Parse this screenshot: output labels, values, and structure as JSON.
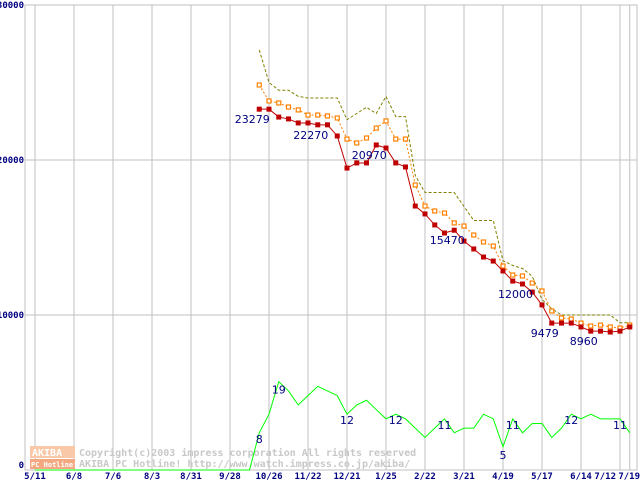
{
  "chart_data": {
    "type": "line",
    "title": "",
    "xlabel": "",
    "ylabel": "",
    "ylim": [
      0,
      30000
    ],
    "secondary_ylim": [
      0,
      100
    ],
    "grid": true,
    "y_ticks": [
      "0",
      "10000",
      "20000",
      "30000"
    ],
    "y_tick_values": [
      0,
      10000,
      20000,
      30000
    ],
    "x_ticks": [
      {
        "week": 0,
        "label": "5/11"
      },
      {
        "week": 4,
        "label": "6/8"
      },
      {
        "week": 8,
        "label": "7/6"
      },
      {
        "week": 12,
        "label": "8/3"
      },
      {
        "week": 16,
        "label": "8/31"
      },
      {
        "week": 20,
        "label": "9/28"
      },
      {
        "week": 24,
        "label": "10/26"
      },
      {
        "week": 28,
        "label": "11/22"
      },
      {
        "week": 32,
        "label": "12/21"
      },
      {
        "week": 36,
        "label": "1/25"
      },
      {
        "week": 40,
        "label": "2/22"
      },
      {
        "week": 44,
        "label": "3/21"
      },
      {
        "week": 48,
        "label": "4/19"
      },
      {
        "week": 52,
        "label": "5/17"
      },
      {
        "week": 56,
        "label": "6/14"
      },
      {
        "week": 60,
        "label": "7/12"
      },
      {
        "week": 61,
        "label": "7/19"
      }
    ],
    "series": [
      {
        "name": "max-price",
        "color": "#808000",
        "style": "dashed",
        "axis": "price",
        "start_week": 23,
        "values": [
          27100,
          25000,
          24500,
          24500,
          24100,
          24000,
          24000,
          24000,
          24000,
          22600,
          23000,
          23400,
          23000,
          24100,
          22800,
          22800,
          19000,
          17900,
          17900,
          17900,
          17900,
          17000,
          16100,
          16100,
          16100,
          13500,
          13200,
          13000,
          12500,
          11000,
          10400,
          10000,
          10000,
          10000,
          10000,
          10000,
          10000,
          9500,
          9500
        ]
      },
      {
        "name": "average-price",
        "color": "#ff8000",
        "style": "dotted-hollow-squares",
        "axis": "price",
        "start_week": 23,
        "values": [
          24840,
          23810,
          23680,
          23420,
          23230,
          22900,
          22900,
          22840,
          22710,
          21350,
          21100,
          21420,
          22060,
          22520,
          21350,
          21350,
          18390,
          17030,
          16710,
          16580,
          15940,
          15740,
          15160,
          14710,
          14450,
          13160,
          12580,
          12520,
          12060,
          11550,
          10260,
          9810,
          9740,
          9480,
          9290,
          9350,
          9230,
          9160,
          9350
        ]
      },
      {
        "name": "min-price",
        "color": "#c00000",
        "style": "solid-filled-squares",
        "axis": "price",
        "start_week": 23,
        "values": [
          23279,
          23279,
          22770,
          22650,
          22390,
          22390,
          22270,
          22270,
          21550,
          19480,
          19810,
          19810,
          20970,
          20770,
          19810,
          19550,
          17030,
          16520,
          15810,
          15290,
          15470,
          14770,
          14260,
          13740,
          13480,
          12840,
          12190,
          12000,
          11480,
          10650,
          9479,
          9479,
          9479,
          9230,
          8960,
          8960,
          8900,
          8960,
          9230
        ]
      },
      {
        "name": "shop-count",
        "color": "#00ff00",
        "style": "solid",
        "axis": "count",
        "start_week": 0,
        "values": [
          0,
          0,
          0,
          0,
          0,
          0,
          0,
          0,
          0,
          0,
          0,
          0,
          0,
          0,
          0,
          0,
          0,
          0,
          0,
          0,
          0,
          0,
          0,
          8,
          12,
          19,
          17,
          14,
          16,
          18,
          17,
          16,
          12,
          14,
          15,
          13,
          11,
          12,
          11,
          9,
          7,
          9,
          11,
          8,
          9,
          9,
          12,
          11,
          5,
          11,
          8,
          10,
          10,
          7,
          9,
          12,
          11,
          12,
          11,
          11,
          11,
          8
        ]
      }
    ],
    "annotations": [
      {
        "series": "min-price",
        "week": 23,
        "text": "23279"
      },
      {
        "series": "min-price",
        "week": 29,
        "text": "22270"
      },
      {
        "series": "min-price",
        "week": 35,
        "text": "20970"
      },
      {
        "series": "min-price",
        "week": 43,
        "text": "15470"
      },
      {
        "series": "min-price",
        "week": 50,
        "text": "12000"
      },
      {
        "series": "min-price",
        "week": 53,
        "text": "9479"
      },
      {
        "series": "min-price",
        "week": 57,
        "text": "8960"
      },
      {
        "series": "shop-count",
        "week": 23,
        "text": "8"
      },
      {
        "series": "shop-count",
        "week": 25,
        "text": "19"
      },
      {
        "series": "shop-count",
        "week": 32,
        "text": "12"
      },
      {
        "series": "shop-count",
        "week": 37,
        "text": "12"
      },
      {
        "series": "shop-count",
        "week": 42,
        "text": "11"
      },
      {
        "series": "shop-count",
        "week": 48,
        "text": "5"
      },
      {
        "series": "shop-count",
        "week": 49,
        "text": "11"
      },
      {
        "series": "shop-count",
        "week": 55,
        "text": "12"
      },
      {
        "series": "shop-count",
        "week": 60,
        "text": "11"
      }
    ]
  },
  "watermark": {
    "logo_top": "AKIBA",
    "logo_bottom": "PC Hotline!",
    "line1": "Copyright(c)2003 impress corporation All rights reserved",
    "line2": "AKIBA PC Hotline!  http://www.watch.impress.co.jp/akiba/"
  }
}
